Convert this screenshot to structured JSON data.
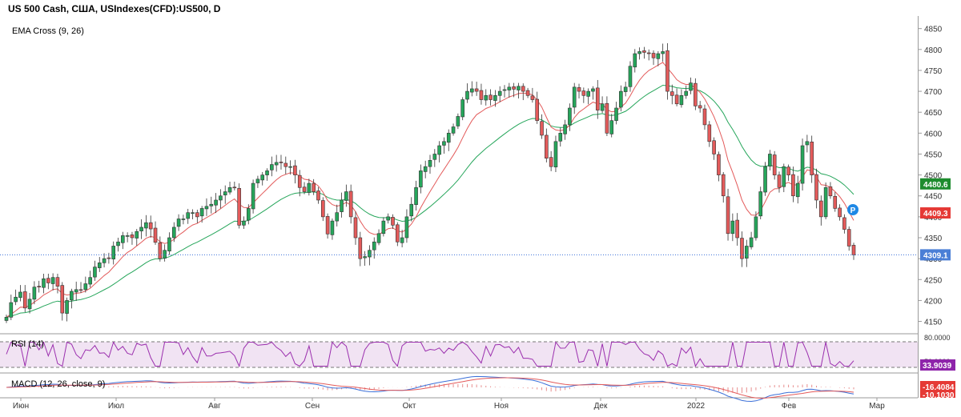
{
  "header": {
    "title": "US 500 Cash, США, USIndexes(CFD):US500, D",
    "ema_label": "EMA Cross (9, 26)",
    "rsi_label": "RSI (14)",
    "macd_label": "MACD (12, 26, close, 9)"
  },
  "colors": {
    "up_candle": "#26a65b",
    "down_candle": "#e35b5b",
    "ema_fast": "#e35b5b",
    "ema_slow": "#26a65b",
    "price_line": "#3a6fd8",
    "rsi_line": "#9b2fae",
    "rsi_band_fill": "#f1e3f3",
    "macd_line": "#3a6fd8",
    "signal_line": "#e35b5b"
  },
  "chart_data": {
    "type": "candlestick",
    "price_axis": {
      "ticks": [
        "4850",
        "4800",
        "4750",
        "4700",
        "4650",
        "4600",
        "4550",
        "4500",
        "4450",
        "4400",
        "4350",
        "4300",
        "4250",
        "4200",
        "4150"
      ],
      "ylim": [
        4130,
        4880
      ]
    },
    "x_axis_labels": [
      "Июн",
      "Июл",
      "Авг",
      "Сен",
      "Окт",
      "Ноя",
      "Дек",
      "2022",
      "Фев",
      "Мар"
    ],
    "price_tags": {
      "ema_slow": "4480.6",
      "ema_fast": "4409.3",
      "last_price": "4309.1"
    },
    "marker_label": "P",
    "rsi": {
      "level": "80.0000",
      "partial_label": "50.0000",
      "value": "33.9039"
    },
    "macd": {
      "macd_value": "-16.4084",
      "signal_partial": "-10.1030"
    },
    "close_series": [
      4160,
      4195,
      4208,
      4220,
      4182,
      4203,
      4232,
      4232,
      4252,
      4242,
      4255,
      4234,
      4170,
      4200,
      4222,
      4226,
      4224,
      4240,
      4255,
      4280,
      4290,
      4300,
      4300,
      4330,
      4340,
      4355,
      4355,
      4350,
      4365,
      4375,
      4386,
      4371,
      4339,
      4300,
      4320,
      4350,
      4375,
      4395,
      4395,
      4410,
      4410,
      4400,
      4420,
      4425,
      4430,
      4440,
      4450,
      4460,
      4470,
      4470,
      4380,
      4390,
      4420,
      4480,
      4490,
      4500,
      4510,
      4525,
      4530,
      4530,
      4520,
      4520,
      4500,
      4470,
      4460,
      4480,
      4460,
      4440,
      4400,
      4359,
      4390,
      4410,
      4440,
      4460,
      4400,
      4350,
      4300,
      4305,
      4320,
      4340,
      4360,
      4390,
      4400,
      4380,
      4340,
      4350,
      4400,
      4430,
      4470,
      4510,
      4520,
      4535,
      4550,
      4570,
      4580,
      4600,
      4615,
      4640,
      4680,
      4700,
      4706,
      4700,
      4680,
      4690,
      4680,
      4690,
      4700,
      4704,
      4710,
      4705,
      4712,
      4700,
      4690,
      4680,
      4630,
      4595,
      4540,
      4520,
      4580,
      4600,
      4620,
      4660,
      4710,
      4700,
      4690,
      4700,
      4706,
      4655,
      4670,
      4600,
      4630,
      4660,
      4700,
      4710,
      4760,
      4790,
      4795,
      4793,
      4790,
      4780,
      4790,
      4795,
      4700,
      4690,
      4670,
      4690,
      4700,
      4720,
      4665,
      4660,
      4620,
      4580,
      4550,
      4500,
      4450,
      4360,
      4390,
      4350,
      4300,
      4330,
      4350,
      4400,
      4460,
      4520,
      4550,
      4500,
      4470,
      4520,
      4500,
      4450,
      4480,
      4570,
      4580,
      4500,
      4440,
      4400,
      4470,
      4450,
      4420,
      4400,
      4370,
      4330,
      4309
    ]
  }
}
